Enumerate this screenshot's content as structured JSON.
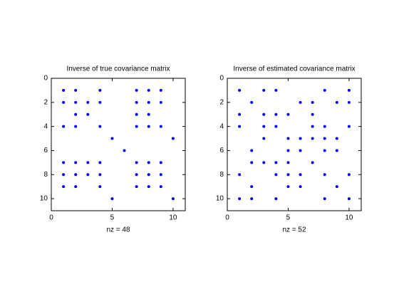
{
  "chart_data": [
    {
      "type": "spy",
      "title": "Inverse of true covariance matrix",
      "xlabel": "nz = 48",
      "color": "#0000ff",
      "xlim": [
        0,
        11
      ],
      "ylim": [
        0,
        11
      ],
      "y_reversed": true,
      "xticks": [
        0,
        5,
        10
      ],
      "yticks": [
        0,
        2,
        4,
        6,
        8,
        10
      ],
      "x": [
        1,
        2,
        4,
        7,
        8,
        9,
        1,
        2,
        3,
        4,
        7,
        8,
        9,
        2,
        3,
        7,
        8,
        1,
        2,
        4,
        7,
        8,
        9,
        5,
        10,
        6,
        1,
        2,
        3,
        4,
        7,
        8,
        9,
        1,
        2,
        3,
        4,
        7,
        8,
        9,
        1,
        2,
        4,
        7,
        8,
        9,
        5,
        10
      ],
      "y": [
        1,
        1,
        1,
        1,
        1,
        1,
        2,
        2,
        2,
        2,
        2,
        2,
        2,
        3,
        3,
        3,
        3,
        4,
        4,
        4,
        4,
        4,
        4,
        5,
        5,
        6,
        7,
        7,
        7,
        7,
        7,
        7,
        7,
        8,
        8,
        8,
        8,
        8,
        8,
        8,
        9,
        9,
        9,
        9,
        9,
        9,
        10,
        10
      ]
    },
    {
      "type": "spy",
      "title": "Inverse of estimated covariance matrix",
      "xlabel": "nz = 52",
      "color": "#0000ff",
      "xlim": [
        0,
        11
      ],
      "ylim": [
        0,
        11
      ],
      "y_reversed": true,
      "xticks": [
        0,
        5,
        10
      ],
      "yticks": [
        0,
        2,
        4,
        6,
        8,
        10
      ],
      "x": [
        1,
        3,
        4,
        8,
        10,
        2,
        6,
        7,
        9,
        10,
        1,
        3,
        4,
        5,
        7,
        1,
        3,
        4,
        7,
        8,
        10,
        3,
        5,
        6,
        7,
        8,
        9,
        2,
        5,
        6,
        8,
        9,
        2,
        3,
        4,
        5,
        7,
        1,
        4,
        5,
        6,
        8,
        10,
        2,
        5,
        6,
        9,
        1,
        2,
        4,
        8,
        10
      ],
      "y": [
        1,
        1,
        1,
        1,
        1,
        2,
        2,
        2,
        2,
        2,
        3,
        3,
        3,
        3,
        3,
        4,
        4,
        4,
        4,
        4,
        4,
        5,
        5,
        5,
        5,
        5,
        5,
        6,
        6,
        6,
        6,
        6,
        7,
        7,
        7,
        7,
        7,
        8,
        8,
        8,
        8,
        8,
        8,
        9,
        9,
        9,
        9,
        10,
        10,
        10,
        10,
        10
      ]
    }
  ]
}
